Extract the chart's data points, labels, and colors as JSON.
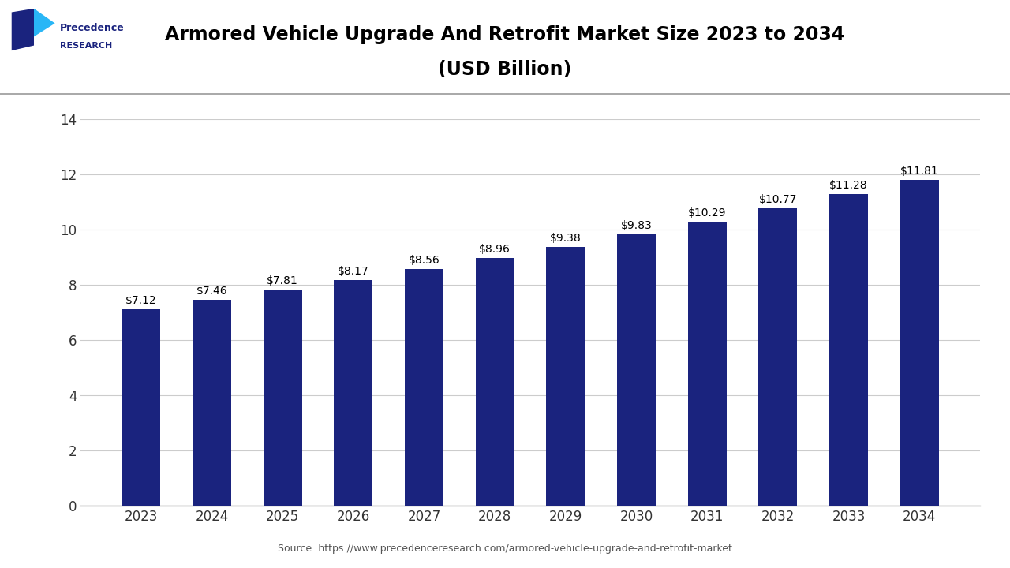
{
  "title_line1": "Armored Vehicle Upgrade And Retrofit Market Size 2023 to 2034",
  "title_line2": "(USD Billion)",
  "categories": [
    "2023",
    "2024",
    "2025",
    "2026",
    "2027",
    "2028",
    "2029",
    "2030",
    "2031",
    "2032",
    "2033",
    "2034"
  ],
  "values": [
    7.12,
    7.46,
    7.81,
    8.17,
    8.56,
    8.96,
    9.38,
    9.83,
    10.29,
    10.77,
    11.28,
    11.81
  ],
  "labels": [
    "$7.12",
    "$7.46",
    "$7.81",
    "$8.17",
    "$8.56",
    "$8.96",
    "$9.38",
    "$9.83",
    "$10.29",
    "$10.77",
    "$11.28",
    "$11.81"
  ],
  "bar_color": "#1a237e",
  "background_color": "#ffffff",
  "ylim": [
    0,
    14
  ],
  "yticks": [
    0,
    2,
    4,
    6,
    8,
    10,
    12,
    14
  ],
  "grid_color": "#cccccc",
  "source_text": "Source: https://www.precedenceresearch.com/armored-vehicle-upgrade-and-retrofit-market",
  "title_color": "#000000",
  "tick_color": "#333333",
  "logo_dark": "#1a237e",
  "logo_light": "#29b6f6",
  "logo_precedence": "Precedence",
  "logo_research": "RESEARCH",
  "title_fontsize": 17,
  "label_fontsize": 10,
  "tick_fontsize": 12,
  "source_fontsize": 9
}
